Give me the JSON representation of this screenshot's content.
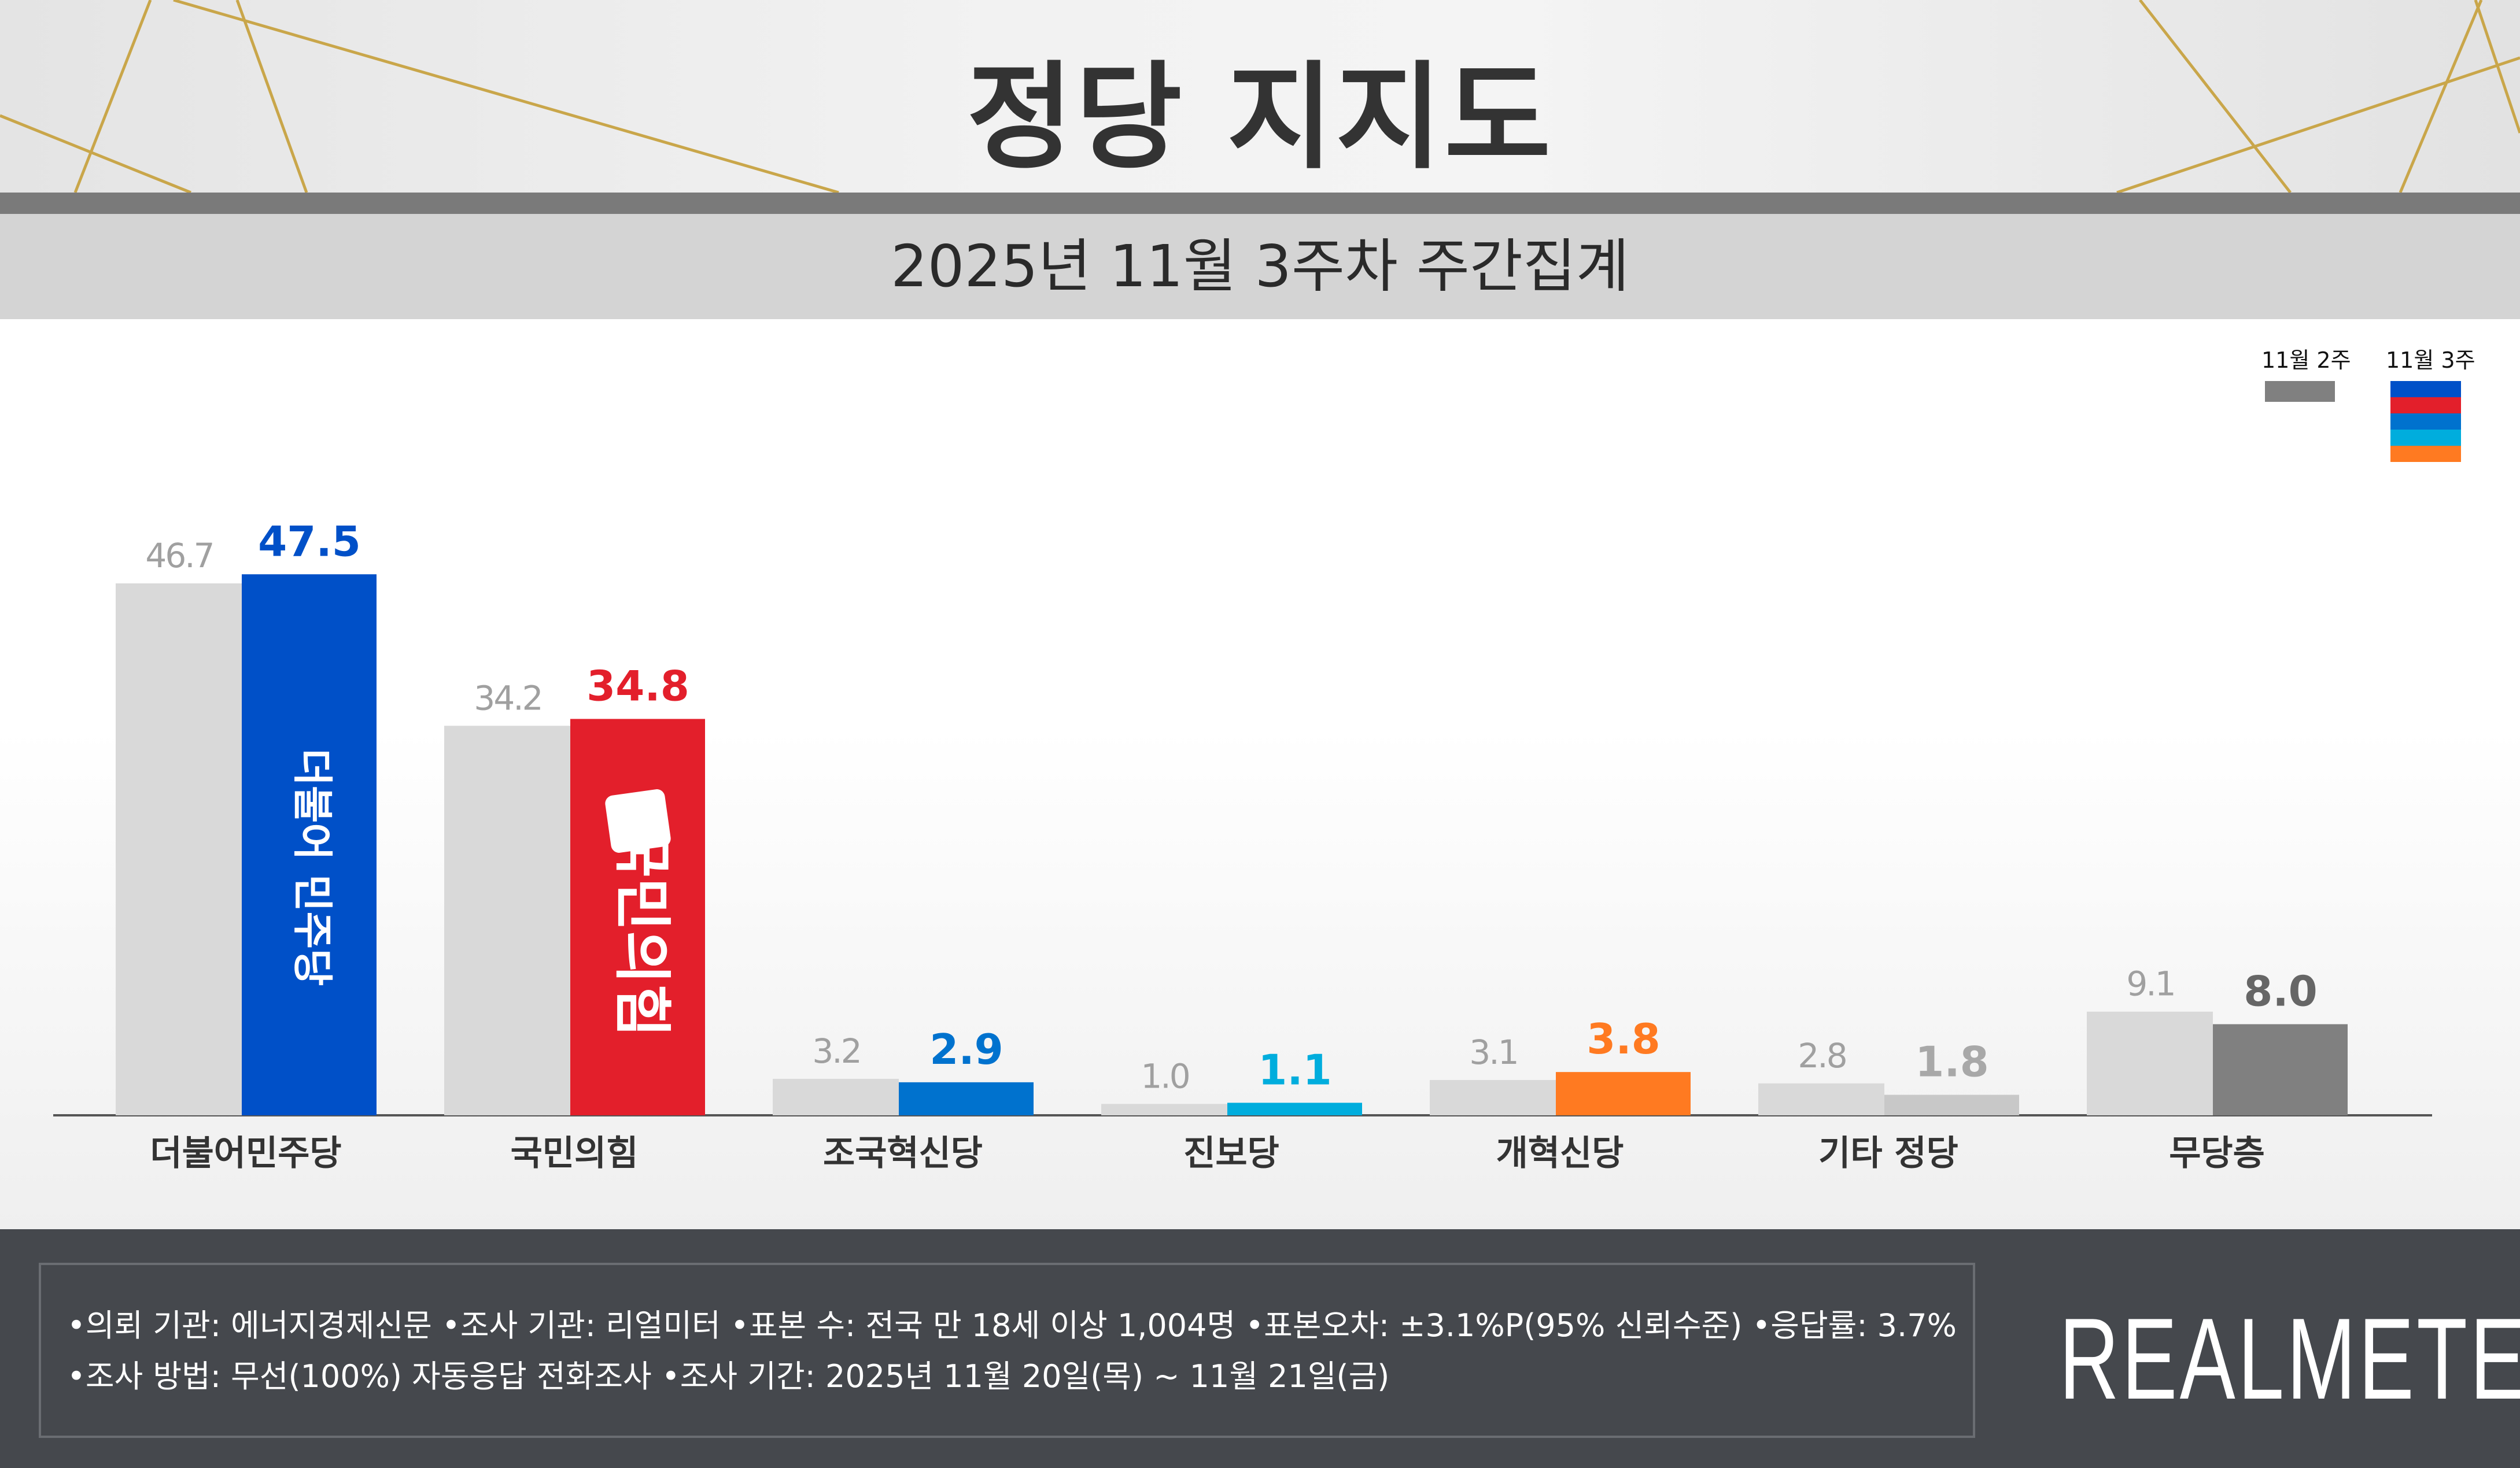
{
  "header": {
    "title": "정당 지지도",
    "subtitle": "2025년 11월 3주차 주간집계"
  },
  "legend": {
    "prev": "11월 2주",
    "curr": "11월 3주",
    "prev_color": "#808080",
    "curr_colors": [
      "#0050C8",
      "#E31F2B",
      "#0072CE",
      "#00ADDD",
      "#FF7A21"
    ]
  },
  "chart_data": {
    "type": "bar",
    "categories": [
      "더불어민주당",
      "국민의힘",
      "조국혁신당",
      "진보당",
      "개혁신당",
      "기타 정당",
      "무당층"
    ],
    "series": [
      {
        "name": "11월 2주",
        "values": [
          46.7,
          34.2,
          3.2,
          1.0,
          3.1,
          2.8,
          9.1
        ],
        "color": "#D9D9D9"
      },
      {
        "name": "11월 3주",
        "values": [
          47.5,
          34.8,
          2.9,
          1.1,
          3.8,
          1.8,
          8.0
        ],
        "colors": [
          "#0050C8",
          "#E31F2B",
          "#0072CE",
          "#00ADDD",
          "#FF7A21",
          "#C8C8C8",
          "#808080"
        ],
        "label_colors": [
          "#0050C8",
          "#E31F2B",
          "#0072CE",
          "#00ADDD",
          "#FF7A21",
          "#A8A8A8",
          "#666666"
        ]
      }
    ],
    "value_labels": {
      "prev": [
        "46.7",
        "34.2",
        "3.2",
        "1.0",
        "3.1",
        "2.8",
        "9.1"
      ],
      "curr": [
        "47.5",
        "34.8",
        "2.9",
        "1.1",
        "3.8",
        "1.8",
        "8.0"
      ]
    },
    "party_logos": [
      "더불어 민주당",
      "국민의힘"
    ],
    "ylim": [
      0,
      50
    ],
    "grid": false,
    "legend_position": "top-right"
  },
  "footer": {
    "line1": "•의뢰 기관: 에너지경제신문   •조사 기관: 리얼미터 •표본 수: 전국 만 18세 이상 1,004명 •표본오차: ±3.1%P(95% 신뢰수준) •응답률: 3.7%",
    "line2": "•조사 방법: 무선(100%) 자동응답 전화조사 •조사 기간: 2025년 11월 20일(목) ~ 11월 21일(금)",
    "brand": "REALMETER"
  }
}
